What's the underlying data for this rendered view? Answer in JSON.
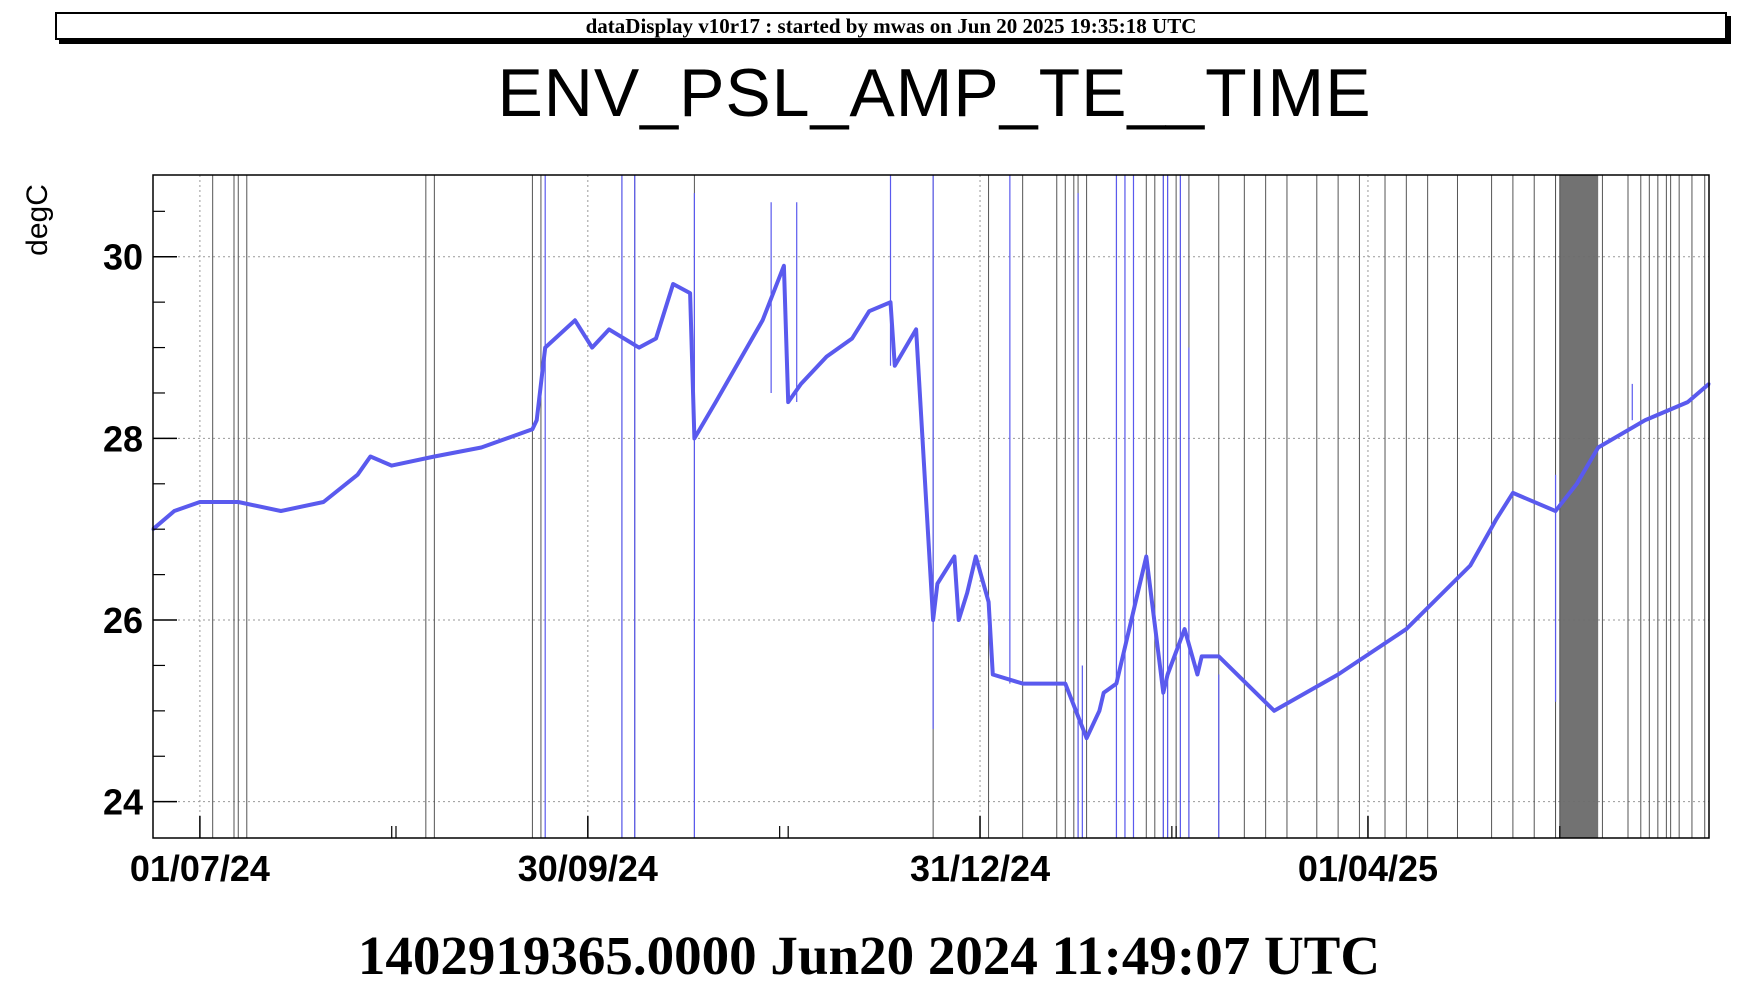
{
  "banner": "dataDisplay v10r17 : started by mwas on Jun 20 2025 19:35:18 UTC",
  "footer": "1402919365.0000 Jun20 2024 11:49:07 UTC",
  "chart_data": {
    "type": "line",
    "title": "ENV_PSL_AMP_TE__TIME",
    "ylabel": "degC",
    "xlabel": "",
    "xlim": [
      "2024-06-20",
      "2025-06-20"
    ],
    "ylim": [
      23.6,
      30.9
    ],
    "grid": true,
    "colors": {
      "series": "#5a5aee",
      "gap_lines": "#555555",
      "shaded_band": "#6a6a6a"
    },
    "x_ticks": [
      {
        "date": "2024-07-01",
        "label": "01/07/24"
      },
      {
        "date": "2024-09-30",
        "label": "30/09/24"
      },
      {
        "date": "2024-12-31",
        "label": "31/12/24"
      },
      {
        "date": "2025-04-01",
        "label": "01/04/25"
      }
    ],
    "y_ticks": [
      {
        "value": 24,
        "label": "24"
      },
      {
        "value": 26,
        "label": "26"
      },
      {
        "value": 28,
        "label": "28"
      },
      {
        "value": 30,
        "label": "30"
      }
    ],
    "series": [
      {
        "x": [
          "2024-06-20",
          "2024-06-25",
          "2024-07-01",
          "2024-07-10",
          "2024-07-20",
          "2024-07-30",
          "2024-08-07",
          "2024-08-10",
          "2024-08-15",
          "2024-08-25",
          "2024-09-05",
          "2024-09-17",
          "2024-09-18",
          "2024-09-20",
          "2024-09-27",
          "2024-10-01",
          "2024-10-05",
          "2024-10-12",
          "2024-10-16",
          "2024-10-20",
          "2024-10-24",
          "2024-10-25",
          "2024-10-30",
          "2024-11-10",
          "2024-11-15",
          "2024-11-16",
          "2024-11-19",
          "2024-11-25",
          "2024-12-01",
          "2024-12-05",
          "2024-12-10",
          "2024-12-11",
          "2024-12-16",
          "2024-12-20",
          "2024-12-21",
          "2024-12-25",
          "2024-12-26",
          "2024-12-28",
          "2024-12-30",
          "2025-01-02",
          "2025-01-03",
          "2025-01-10",
          "2025-01-14",
          "2025-01-20",
          "2025-01-25",
          "2025-01-28",
          "2025-01-29",
          "2025-02-01",
          "2025-02-08",
          "2025-02-12",
          "2025-02-13",
          "2025-02-17",
          "2025-02-20",
          "2025-02-21",
          "2025-02-25",
          "2025-03-10",
          "2025-03-25",
          "2025-04-10",
          "2025-04-25",
          "2025-05-01",
          "2025-05-05",
          "2025-05-15",
          "2025-05-20",
          "2025-05-25",
          "2025-06-05",
          "2025-06-15",
          "2025-06-20"
        ],
        "y": [
          27.0,
          27.2,
          27.3,
          27.3,
          27.2,
          27.3,
          27.6,
          27.8,
          27.7,
          27.8,
          27.9,
          28.1,
          28.2,
          29.0,
          29.3,
          29.0,
          29.2,
          29.0,
          29.1,
          29.7,
          29.6,
          28.0,
          28.4,
          29.3,
          29.9,
          28.4,
          28.6,
          28.9,
          29.1,
          29.4,
          29.5,
          28.8,
          29.2,
          26.0,
          26.4,
          26.7,
          26.0,
          26.3,
          26.7,
          26.2,
          25.4,
          25.3,
          25.3,
          25.3,
          24.7,
          25.0,
          25.2,
          25.3,
          26.7,
          25.2,
          25.4,
          25.9,
          25.4,
          25.6,
          25.6,
          25.0,
          25.4,
          25.9,
          26.6,
          27.1,
          27.4,
          27.2,
          27.5,
          27.9,
          28.2,
          28.4,
          28.6
        ],
        "spikes": [
          {
            "x": "2024-09-20",
            "y_low": 23.6,
            "y_high": 30.9
          },
          {
            "x": "2024-10-08",
            "y_low": 23.6,
            "y_high": 30.9
          },
          {
            "x": "2024-10-11",
            "y_low": 23.6,
            "y_high": 30.9
          },
          {
            "x": "2024-10-25",
            "y_low": 23.6,
            "y_high": 30.7
          },
          {
            "x": "2024-11-12",
            "y_low": 28.5,
            "y_high": 30.6
          },
          {
            "x": "2024-11-18",
            "y_low": 28.4,
            "y_high": 30.6
          },
          {
            "x": "2024-12-10",
            "y_low": 28.8,
            "y_high": 30.9
          },
          {
            "x": "2024-12-20",
            "y_low": 24.8,
            "y_high": 30.9
          },
          {
            "x": "2025-01-07",
            "y_low": 25.3,
            "y_high": 30.9
          },
          {
            "x": "2025-01-23",
            "y_low": 23.6,
            "y_high": 30.7
          },
          {
            "x": "2025-01-24",
            "y_low": 23.6,
            "y_high": 25.5
          },
          {
            "x": "2025-02-01",
            "y_low": 23.6,
            "y_high": 30.9
          },
          {
            "x": "2025-02-03",
            "y_low": 23.6,
            "y_high": 30.9
          },
          {
            "x": "2025-02-05",
            "y_low": 23.6,
            "y_high": 30.9
          },
          {
            "x": "2025-02-12",
            "y_low": 23.6,
            "y_high": 30.9
          },
          {
            "x": "2025-02-13",
            "y_low": 23.6,
            "y_high": 30.9
          },
          {
            "x": "2025-02-16",
            "y_low": 23.6,
            "y_high": 30.9
          },
          {
            "x": "2025-02-18",
            "y_low": 23.6,
            "y_high": 29.0
          },
          {
            "x": "2025-02-25",
            "y_low": 23.6,
            "y_high": 25.4
          },
          {
            "x": "2025-05-15",
            "y_low": 25.1,
            "y_high": 27.6
          },
          {
            "x": "2025-06-02",
            "y_low": 28.2,
            "y_high": 28.6
          }
        ]
      }
    ],
    "gap_lines": [
      "2024-07-04",
      "2024-07-09",
      "2024-07-10",
      "2024-07-12",
      "2024-08-23",
      "2024-08-25",
      "2024-09-17",
      "2024-09-19",
      "2024-10-08",
      "2024-10-11",
      "2024-10-25",
      "2024-12-20",
      "2025-01-02",
      "2025-01-10",
      "2025-01-18",
      "2025-01-20",
      "2025-01-22",
      "2025-01-23",
      "2025-01-25",
      "2025-02-01",
      "2025-02-03",
      "2025-02-05",
      "2025-02-08",
      "2025-02-10",
      "2025-02-12",
      "2025-02-13",
      "2025-02-15",
      "2025-02-16",
      "2025-02-18",
      "2025-02-25",
      "2025-03-03",
      "2025-03-08",
      "2025-03-13",
      "2025-03-20",
      "2025-03-25",
      "2025-03-30",
      "2025-04-05",
      "2025-04-10",
      "2025-04-15",
      "2025-04-22",
      "2025-04-30",
      "2025-05-05",
      "2025-05-10",
      "2025-05-15",
      "2025-05-15",
      "2025-05-16",
      "2025-05-26",
      "2025-06-01",
      "2025-06-04",
      "2025-06-06",
      "2025-06-08",
      "2025-06-10",
      "2025-06-11",
      "2025-06-13",
      "2025-06-16",
      "2025-06-19"
    ],
    "shaded_band": [
      "2025-05-16",
      "2025-05-25"
    ]
  }
}
